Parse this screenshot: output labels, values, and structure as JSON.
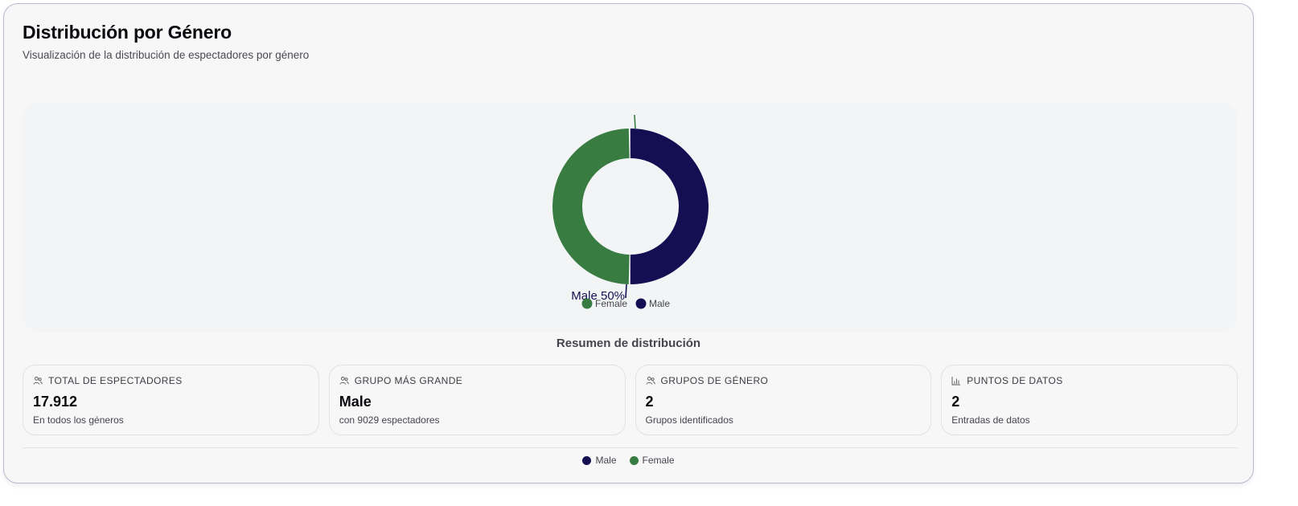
{
  "header": {
    "title": "Distribución por Género",
    "subtitle": "Visualización de la distribución de espectadores por género"
  },
  "colors": {
    "male": "#130f52",
    "female": "#387c42"
  },
  "chart_data": {
    "type": "pie",
    "variant": "donut",
    "title": "Distribución por Género",
    "categories": [
      "Female",
      "Male"
    ],
    "values": [
      8883,
      9029
    ],
    "percentages": [
      49.6,
      50.4
    ],
    "colors": [
      "#387c42",
      "#130f52"
    ],
    "slice_labels": [
      {
        "category": "Male",
        "text": "Male 50%"
      }
    ],
    "legend": {
      "position": "bottom",
      "entries": [
        "Female",
        "Male"
      ]
    }
  },
  "chart": {
    "slice_label_male": "Male 50%",
    "legend": [
      {
        "label": "Female",
        "color": "#387c42"
      },
      {
        "label": "Male",
        "color": "#130f52"
      }
    ]
  },
  "summary": {
    "title": "Resumen de distribución",
    "cards": [
      {
        "icon": "users-icon",
        "label": "TOTAL DE ESPECTADORES",
        "value": "17.912",
        "desc": "En todos los géneros"
      },
      {
        "icon": "users-icon",
        "label": "GRUPO MÁS GRANDE",
        "value": "Male",
        "desc": "con 9029 espectadores"
      },
      {
        "icon": "users-icon",
        "label": "GRUPOS DE GÉNERO",
        "value": "2",
        "desc": "Grupos identificados"
      },
      {
        "icon": "bar-chart-icon",
        "label": "PUNTOS DE DATOS",
        "value": "2",
        "desc": "Entradas de datos"
      }
    ]
  },
  "footer_legend": [
    {
      "label": "Male",
      "color": "#130f52"
    },
    {
      "label": "Female",
      "color": "#387c42"
    }
  ]
}
